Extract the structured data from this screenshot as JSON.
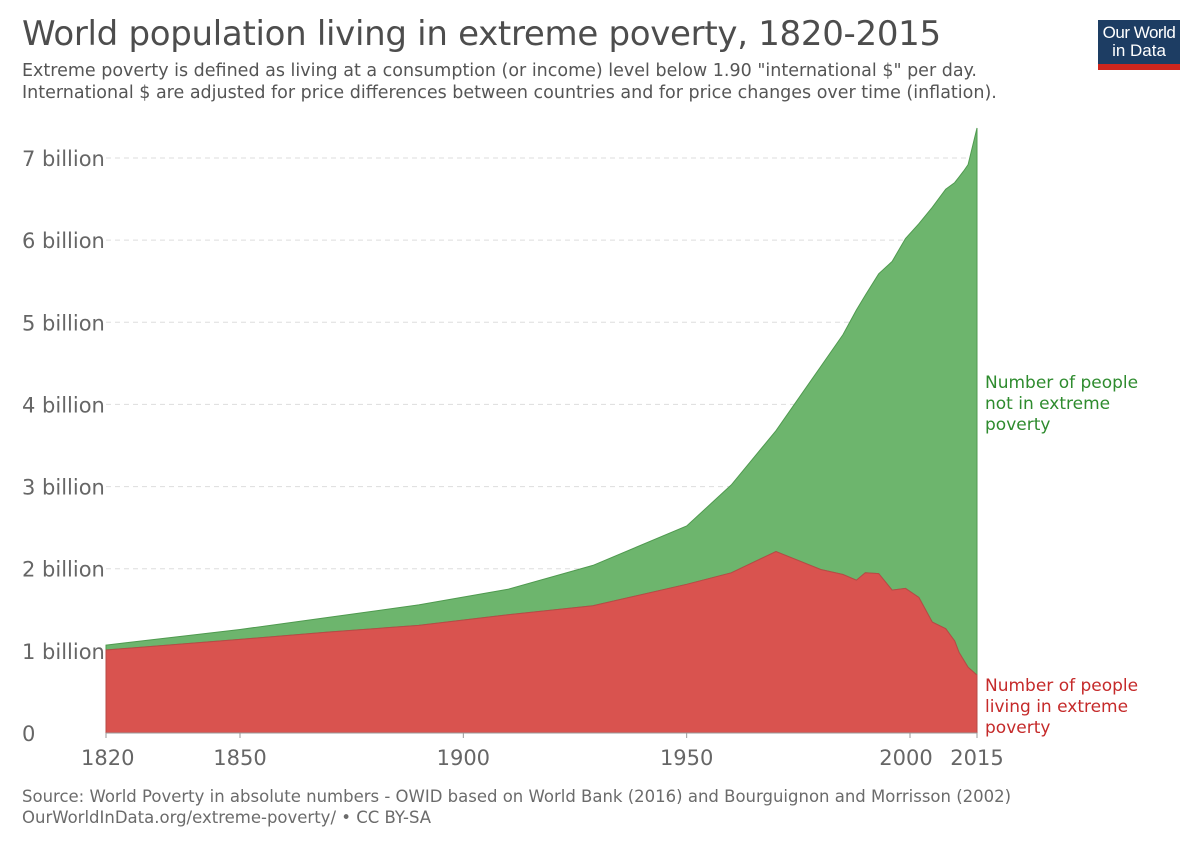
{
  "header": {
    "title": "World population living in extreme poverty, 1820-2015",
    "subtitle_line1": "Extreme poverty is defined as living at a consumption (or income) level below 1.90 \"international $\" per day.",
    "subtitle_line2": "International $ are adjusted for price differences between countries and for price changes over time (inflation)."
  },
  "logo": {
    "line1": "Our World",
    "line2": "in Data",
    "bg_color": "#1d3d63",
    "accent_color": "#ce261e"
  },
  "footer": {
    "source": "Source: World Poverty in absolute numbers - OWID based on World Bank (2016) and Bourguignon and Morrisson (2002)",
    "url_license": "OurWorldInData.org/extreme-poverty/ • CC BY-SA"
  },
  "chart_data": {
    "type": "area",
    "stacked": true,
    "title": "World population living in extreme poverty, 1820-2015",
    "xlim": [
      1820,
      2015
    ],
    "ylim": [
      0,
      7500000000
    ],
    "x_ticks": [
      {
        "value": 1820,
        "label": "1820"
      },
      {
        "value": 1850,
        "label": "1850"
      },
      {
        "value": 1900,
        "label": "1900"
      },
      {
        "value": 1950,
        "label": "1950"
      },
      {
        "value": 2000,
        "label": "2000"
      },
      {
        "value": 2015,
        "label": "2015"
      }
    ],
    "y_ticks": [
      {
        "value": 0,
        "label": "0"
      },
      {
        "value": 1000000000,
        "label": "1 billion"
      },
      {
        "value": 2000000000,
        "label": "2 billion"
      },
      {
        "value": 3000000000,
        "label": "3 billion"
      },
      {
        "value": 4000000000,
        "label": "4 billion"
      },
      {
        "value": 5000000000,
        "label": "5 billion"
      },
      {
        "value": 6000000000,
        "label": "6 billion"
      },
      {
        "value": 7000000000,
        "label": "7 billion"
      }
    ],
    "grid": true,
    "series": [
      {
        "name": "Number of people living in extreme poverty",
        "label_lines": [
          "Number of people",
          "living in extreme",
          "poverty"
        ],
        "color": "#d9534f",
        "text_color": "#c52a2a",
        "points": [
          [
            1820,
            1010000000
          ],
          [
            1850,
            1140000000
          ],
          [
            1870,
            1230000000
          ],
          [
            1890,
            1310000000
          ],
          [
            1910,
            1440000000
          ],
          [
            1929,
            1550000000
          ],
          [
            1950,
            1810000000
          ],
          [
            1960,
            1950000000
          ],
          [
            1970,
            2210000000
          ],
          [
            1980,
            1990000000
          ],
          [
            1985,
            1930000000
          ],
          [
            1988,
            1860000000
          ],
          [
            1990,
            1950000000
          ],
          [
            1993,
            1940000000
          ],
          [
            1996,
            1740000000
          ],
          [
            1999,
            1760000000
          ],
          [
            2002,
            1650000000
          ],
          [
            2005,
            1350000000
          ],
          [
            2008,
            1270000000
          ],
          [
            2010,
            1120000000
          ],
          [
            2011,
            980000000
          ],
          [
            2012,
            890000000
          ],
          [
            2013,
            800000000
          ],
          [
            2015,
            705000000
          ]
        ]
      },
      {
        "name": "Number of people not in extreme poverty",
        "label_lines": [
          "Number of people",
          "not in extreme",
          "poverty"
        ],
        "color": "#6db56d",
        "text_color": "#2e8b2e",
        "points": [
          [
            1820,
            60000000
          ],
          [
            1850,
            120000000
          ],
          [
            1870,
            180000000
          ],
          [
            1890,
            250000000
          ],
          [
            1910,
            310000000
          ],
          [
            1929,
            490000000
          ],
          [
            1950,
            710000000
          ],
          [
            1960,
            1070000000
          ],
          [
            1970,
            1470000000
          ],
          [
            1980,
            2470000000
          ],
          [
            1985,
            2920000000
          ],
          [
            1988,
            3290000000
          ],
          [
            1990,
            3380000000
          ],
          [
            1993,
            3650000000
          ],
          [
            1996,
            4000000000
          ],
          [
            1999,
            4260000000
          ],
          [
            2002,
            4550000000
          ],
          [
            2005,
            5050000000
          ],
          [
            2008,
            5350000000
          ],
          [
            2010,
            5580000000
          ],
          [
            2011,
            5790000000
          ],
          [
            2012,
            5950000000
          ],
          [
            2013,
            6120000000
          ],
          [
            2015,
            6660000000
          ]
        ]
      }
    ]
  }
}
